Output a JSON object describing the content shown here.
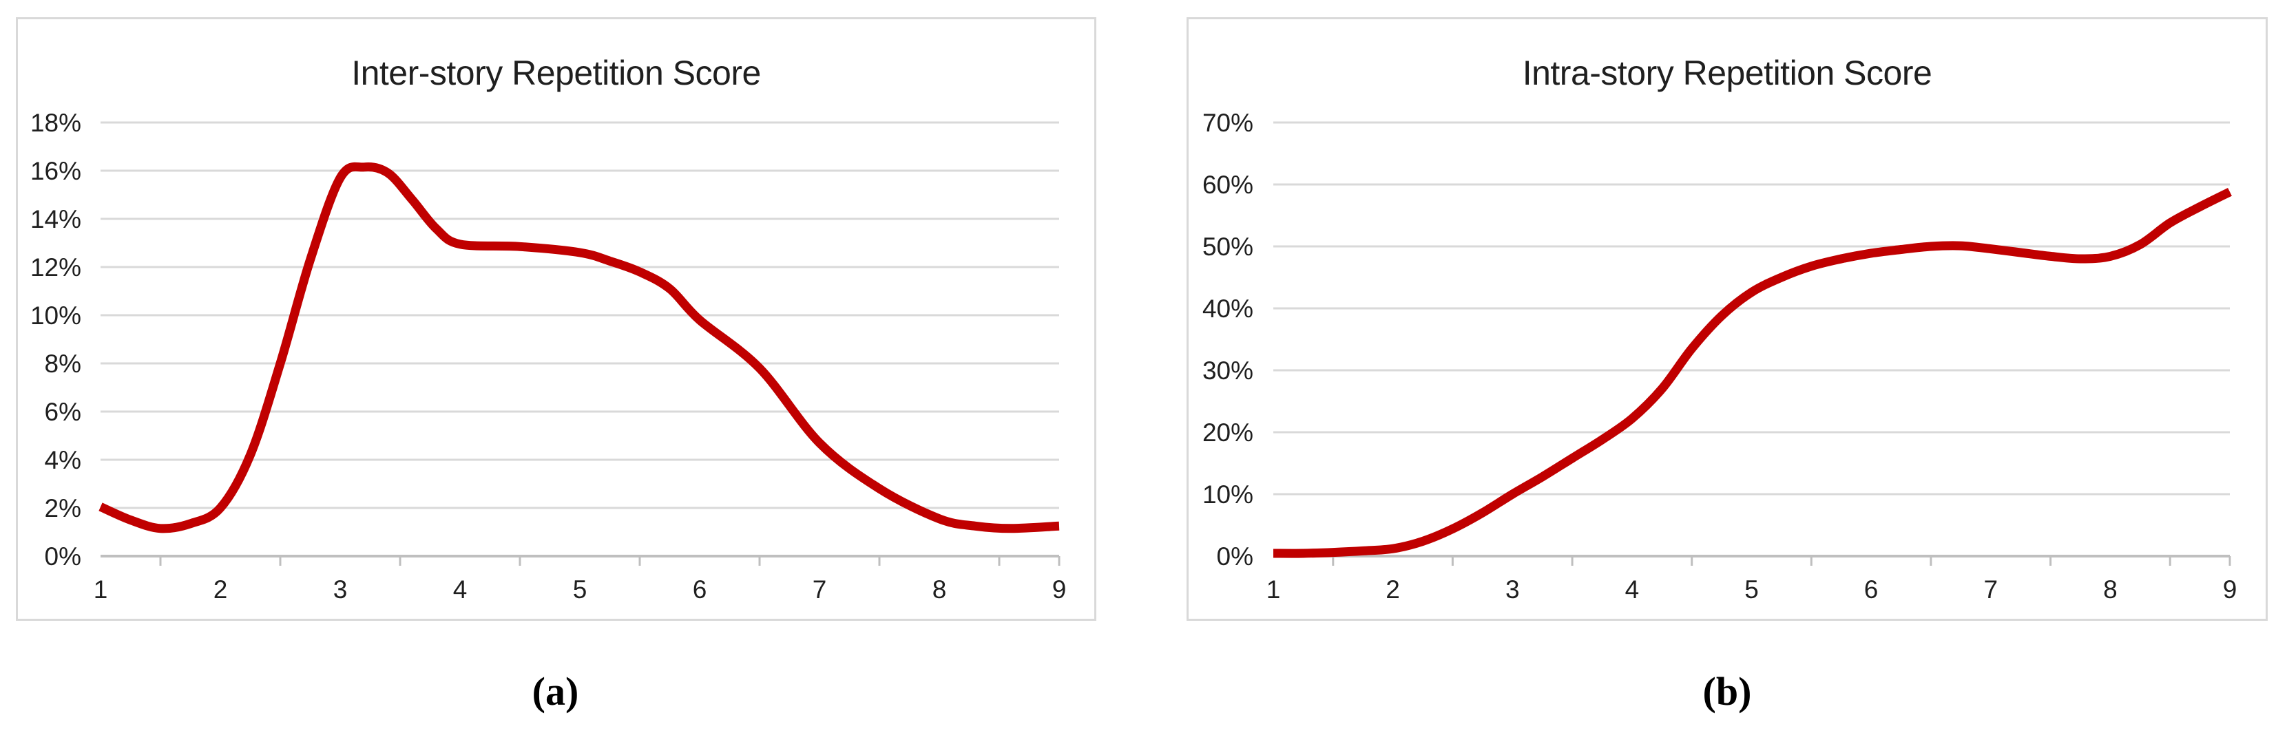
{
  "figure": {
    "captions": [
      "(a)",
      "(b)"
    ]
  },
  "colors": {
    "series": "#C00000",
    "gridline": "#D9D9D9",
    "axis": "#BFBFBF",
    "panel_border": "#D9D9D9",
    "text": "#1F1F1F",
    "background": "#FFFFFF"
  },
  "chart_data": [
    {
      "panel": "a",
      "type": "line",
      "title": "Inter-story Repetition Score",
      "xlabel": "",
      "ylabel": "",
      "legend": false,
      "grid": true,
      "line_color": "#C00000",
      "categories": [
        1,
        2,
        3,
        4,
        5,
        6,
        7,
        8,
        9
      ],
      "values_percent": [
        2.0,
        2.0,
        15.7,
        13.0,
        12.6,
        9.8,
        4.7,
        1.6,
        1.25
      ],
      "y_axis": {
        "min": 0,
        "max": 18,
        "step": 2,
        "tick_labels": [
          "18%",
          "16%",
          "14%",
          "12%",
          "10%",
          "8%",
          "6%",
          "4%",
          "2%",
          "0%"
        ]
      },
      "x_axis": {
        "tick_labels": [
          "1",
          "2",
          "3",
          "4",
          "5",
          "6",
          "7",
          "8",
          "9"
        ]
      },
      "render_samples": [
        [
          1,
          2.05
        ],
        [
          1.25,
          1.5
        ],
        [
          1.5,
          1.15
        ],
        [
          1.75,
          1.35
        ],
        [
          2,
          2.0
        ],
        [
          2.25,
          4.2
        ],
        [
          2.5,
          8.0
        ],
        [
          2.75,
          12.3
        ],
        [
          3,
          15.7
        ],
        [
          3.2,
          16.15
        ],
        [
          3.4,
          15.9
        ],
        [
          3.6,
          14.8
        ],
        [
          3.8,
          13.6
        ],
        [
          4,
          12.95
        ],
        [
          4.5,
          12.85
        ],
        [
          5,
          12.6
        ],
        [
          5.25,
          12.25
        ],
        [
          5.5,
          11.8
        ],
        [
          5.75,
          11.1
        ],
        [
          6,
          9.8
        ],
        [
          6.5,
          7.8
        ],
        [
          7,
          4.7
        ],
        [
          7.5,
          2.8
        ],
        [
          8,
          1.55
        ],
        [
          8.3,
          1.25
        ],
        [
          8.6,
          1.15
        ],
        [
          9,
          1.25
        ]
      ]
    },
    {
      "panel": "b",
      "type": "line",
      "title": "Intra-story Repetition Score",
      "xlabel": "",
      "ylabel": "",
      "legend": false,
      "grid": true,
      "line_color": "#C00000",
      "categories": [
        1,
        2,
        3,
        4,
        5,
        6,
        7,
        8,
        9
      ],
      "values_percent": [
        0.5,
        1.2,
        10.0,
        22.2,
        42.6,
        48.9,
        49.6,
        48.4,
        58.8
      ],
      "y_axis": {
        "min": 0,
        "max": 70,
        "step": 10,
        "tick_labels": [
          "70%",
          "60%",
          "50%",
          "40%",
          "30%",
          "20%",
          "10%",
          "0%"
        ]
      },
      "x_axis": {
        "tick_labels": [
          "1",
          "2",
          "3",
          "4",
          "5",
          "6",
          "7",
          "8",
          "9"
        ]
      },
      "render_samples": [
        [
          1,
          0.45
        ],
        [
          1.25,
          0.45
        ],
        [
          1.5,
          0.6
        ],
        [
          1.75,
          0.85
        ],
        [
          2,
          1.2
        ],
        [
          2.25,
          2.4
        ],
        [
          2.5,
          4.4
        ],
        [
          2.75,
          7.0
        ],
        [
          3,
          10.0
        ],
        [
          3.25,
          12.8
        ],
        [
          3.5,
          15.8
        ],
        [
          3.75,
          18.8
        ],
        [
          4,
          22.2
        ],
        [
          4.25,
          27.0
        ],
        [
          4.5,
          33.5
        ],
        [
          4.75,
          38.8
        ],
        [
          5,
          42.6
        ],
        [
          5.25,
          45.0
        ],
        [
          5.5,
          46.8
        ],
        [
          5.75,
          48.0
        ],
        [
          6,
          48.9
        ],
        [
          6.25,
          49.5
        ],
        [
          6.5,
          50.0
        ],
        [
          6.75,
          50.1
        ],
        [
          7,
          49.6
        ],
        [
          7.25,
          49.0
        ],
        [
          7.5,
          48.4
        ],
        [
          7.75,
          48.0
        ],
        [
          8,
          48.4
        ],
        [
          8.25,
          50.3
        ],
        [
          8.5,
          53.8
        ],
        [
          8.75,
          56.4
        ],
        [
          9,
          58.8
        ]
      ]
    }
  ]
}
